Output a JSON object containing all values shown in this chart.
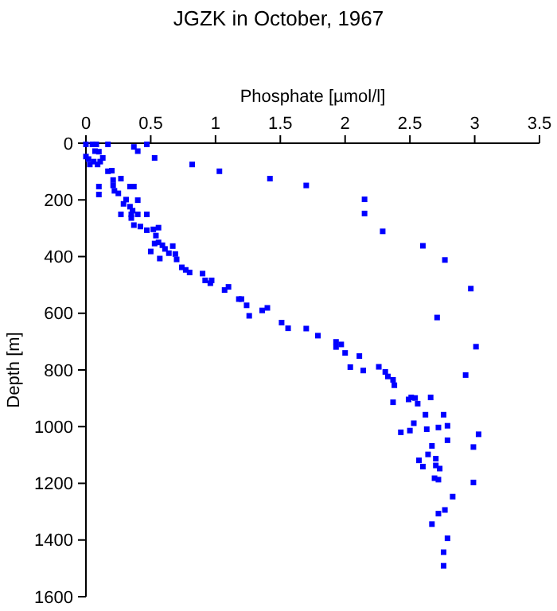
{
  "chart_data": {
    "type": "scatter",
    "title": "JGZK in October, 1967",
    "xlabel": "Phosphate [µmol/l]",
    "ylabel": "Depth [m]",
    "xlim": [
      0,
      3.5
    ],
    "xticks": [
      0,
      0.5,
      1,
      1.5,
      2,
      2.5,
      3,
      3.5
    ],
    "ylim": [
      1600,
      0
    ],
    "yticks": [
      0,
      200,
      400,
      600,
      800,
      1000,
      1200,
      1400,
      1600
    ],
    "marker": "square",
    "grid": false,
    "series": [
      {
        "color": "#0000ff",
        "x": [
          0,
          0.05,
          0.08,
          0.17,
          0.47,
          0.37,
          0.4,
          0.53,
          0,
          0.02,
          0.07,
          0.1,
          0.06,
          0.11,
          0.03,
          0.09,
          0.13,
          0.82,
          1.03,
          1.42,
          0.17,
          0.2,
          0.21,
          0.21,
          0.1,
          0.1,
          0.27,
          0.34,
          0.37,
          0.22,
          0.25,
          0.31,
          0.4,
          0.29,
          0.34,
          0.27,
          0.35,
          0.4,
          0.47,
          0.36,
          0.35,
          0.37,
          0.42,
          0.47,
          0.52,
          0.56,
          0.54,
          0.53,
          0.56,
          0.59,
          0.61,
          0.64,
          0.67,
          0.57,
          0.5,
          0.69,
          0.7,
          0.74,
          0.77,
          0.8,
          0.9,
          0.92,
          0.96,
          0.97,
          1.07,
          1.1,
          1.18,
          1.2,
          1.24,
          1.26,
          1.36,
          1.4,
          1.51,
          1.7,
          2.15,
          2.15,
          2.29,
          2.6,
          2.77,
          2.97,
          2.71,
          3.01,
          1.56,
          1.7,
          1.79,
          1.93,
          1.97,
          1.93,
          2.0,
          2.11,
          2.04,
          2.14,
          2.26,
          2.31,
          2.33,
          2.37,
          2.38,
          2.93,
          2.51,
          2.49,
          2.54,
          2.37,
          2.56,
          2.66,
          2.76,
          2.62,
          2.53,
          2.43,
          2.5,
          2.63,
          2.72,
          2.79,
          3.03,
          2.79,
          2.67,
          2.99,
          2.64,
          2.57,
          2.7,
          2.6,
          2.7,
          2.73,
          2.69,
          2.72,
          2.99,
          2.83,
          2.77,
          2.72,
          2.67,
          2.79,
          2.76,
          2.76
        ],
        "values": [
          4,
          4,
          4,
          4,
          4,
          13,
          28,
          52,
          47,
          56,
          28,
          30,
          65,
          65,
          75,
          75,
          52,
          75,
          99,
          125,
          99,
          97,
          130,
          149,
          153,
          181,
          125,
          153,
          153,
          168,
          177,
          199,
          201,
          214,
          224,
          251,
          251,
          251,
          251,
          238,
          264,
          289,
          294,
          307,
          304,
          298,
          326,
          354,
          350,
          360,
          373,
          388,
          363,
          407,
          382,
          391,
          410,
          438,
          447,
          456,
          460,
          484,
          494,
          484,
          518,
          507,
          550,
          550,
          572,
          609,
          590,
          581,
          633,
          149,
          198,
          248,
          311,
          362,
          412,
          513,
          615,
          718,
          653,
          654,
          679,
          701,
          710,
          719,
          740,
          751,
          790,
          802,
          789,
          807,
          823,
          835,
          854,
          818,
          897,
          904,
          899,
          914,
          919,
          897,
          958,
          958,
          988,
          1020,
          1014,
          1009,
          1003,
          997,
          1027,
          1048,
          1068,
          1072,
          1098,
          1119,
          1113,
          1141,
          1137,
          1148,
          1182,
          1187,
          1197,
          1247,
          1294,
          1307,
          1344,
          1394,
          1443,
          1491
        ]
      }
    ]
  }
}
